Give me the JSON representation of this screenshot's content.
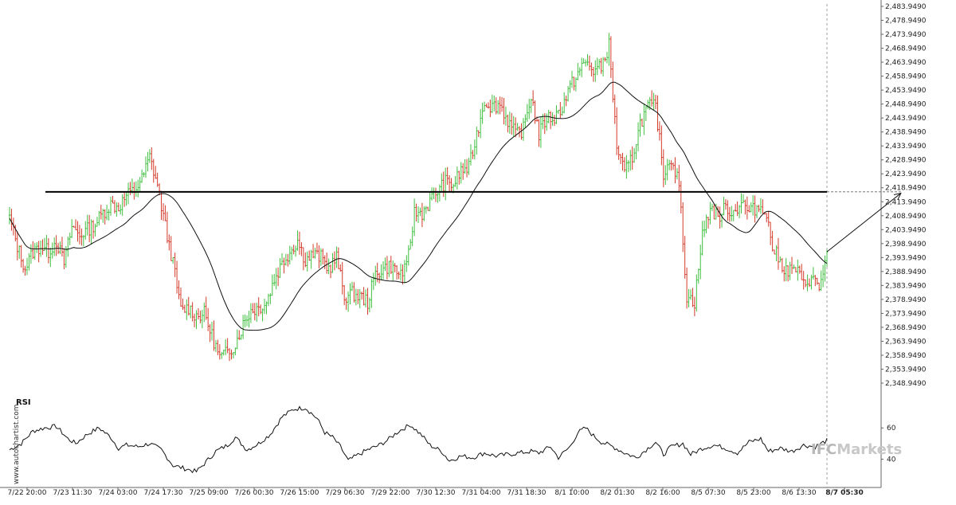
{
  "watermark": {
    "side_text": "www.autochartist.com",
    "logo_text": "IFCMarkets",
    "logo_prefix": "IFC",
    "logo_suffix": "Markets"
  },
  "colors": {
    "up": "#3fbf3f",
    "down": "#d43a2a",
    "ma": "#111111",
    "resistance": "#000000",
    "forecast": "#111111",
    "logo": "#c8c8c8"
  },
  "chart_data": [
    {
      "type": "candlestick",
      "title": "",
      "xlabel": "",
      "ylabel": "",
      "ylim": [
        2348.949,
        2483.949
      ],
      "y_ticks": [
        "2,483.9490",
        "2,478.9490",
        "2,473.9490",
        "2,468.9490",
        "2,463.9490",
        "2,458.9490",
        "2,453.9490",
        "2,448.9490",
        "2,443.9490",
        "2,438.9490",
        "2,433.9490",
        "2,428.9490",
        "2,423.9490",
        "2,418.9490",
        "2,413.9490",
        "2,408.9490",
        "2,403.9490",
        "2,398.9490",
        "2,393.9490",
        "2,388.9490",
        "2,383.9490",
        "2,378.9490",
        "2,373.9490",
        "2,368.9490",
        "2,363.9490",
        "2,358.9490",
        "2,353.9490",
        "2,348.9490"
      ],
      "x_ticks": [
        "7/22 20:00",
        "7/23 11:30",
        "7/24 03:00",
        "7/24 17:30",
        "7/25 09:00",
        "7/26 00:30",
        "7/26 15:00",
        "7/29 06:30",
        "7/29 22:00",
        "7/30 12:30",
        "7/31 04:00",
        "7/31 18:30",
        "8/1 10:00",
        "8/2 01:30",
        "8/2 16:00",
        "8/5 07:30",
        "8/5 23:00",
        "8/6 13:30",
        "8/7 05:30"
      ],
      "price_path": [
        [
          0,
          2408
        ],
        [
          4,
          2398
        ],
        [
          8,
          2390
        ],
        [
          12,
          2396
        ],
        [
          16,
          2398
        ],
        [
          20,
          2396
        ],
        [
          24,
          2400
        ],
        [
          28,
          2392
        ],
        [
          32,
          2405
        ],
        [
          36,
          2402
        ],
        [
          40,
          2404
        ],
        [
          44,
          2406
        ],
        [
          48,
          2410
        ],
        [
          52,
          2413
        ],
        [
          56,
          2412
        ],
        [
          60,
          2416
        ],
        [
          64,
          2418
        ],
        [
          68,
          2422
        ],
        [
          72,
          2430
        ],
        [
          76,
          2420
        ],
        [
          80,
          2405
        ],
        [
          84,
          2392
        ],
        [
          88,
          2375
        ],
        [
          92,
          2376
        ],
        [
          96,
          2373
        ],
        [
          100,
          2374
        ],
        [
          104,
          2366
        ],
        [
          108,
          2358
        ],
        [
          112,
          2360
        ],
        [
          116,
          2363
        ],
        [
          120,
          2370
        ],
        [
          124,
          2375
        ],
        [
          128,
          2376
        ],
        [
          132,
          2378
        ],
        [
          136,
          2386
        ],
        [
          140,
          2392
        ],
        [
          144,
          2396
        ],
        [
          148,
          2400
        ],
        [
          152,
          2393
        ],
        [
          156,
          2395
        ],
        [
          160,
          2394
        ],
        [
          164,
          2390
        ],
        [
          168,
          2394
        ],
        [
          172,
          2380
        ],
        [
          176,
          2381
        ],
        [
          180,
          2380
        ],
        [
          184,
          2378
        ],
        [
          188,
          2388
        ],
        [
          192,
          2390
        ],
        [
          196,
          2391
        ],
        [
          200,
          2388
        ],
        [
          204,
          2390
        ],
        [
          208,
          2410
        ],
        [
          212,
          2410
        ],
        [
          216,
          2414
        ],
        [
          220,
          2418
        ],
        [
          224,
          2421
        ],
        [
          228,
          2420
        ],
        [
          232,
          2425
        ],
        [
          236,
          2426
        ],
        [
          240,
          2438
        ],
        [
          244,
          2450
        ],
        [
          248,
          2448
        ],
        [
          252,
          2449
        ],
        [
          256,
          2443
        ],
        [
          260,
          2438
        ],
        [
          264,
          2440
        ],
        [
          268,
          2452
        ],
        [
          272,
          2438
        ],
        [
          276,
          2444
        ],
        [
          280,
          2444
        ],
        [
          284,
          2448
        ],
        [
          288,
          2455
        ],
        [
          292,
          2460
        ],
        [
          296,
          2464
        ],
        [
          300,
          2461
        ],
        [
          304,
          2462
        ],
        [
          308,
          2470
        ],
        [
          312,
          2434
        ],
        [
          316,
          2424
        ],
        [
          320,
          2430
        ],
        [
          324,
          2442
        ],
        [
          328,
          2448
        ],
        [
          332,
          2448
        ],
        [
          336,
          2424
        ],
        [
          340,
          2430
        ],
        [
          344,
          2420
        ],
        [
          348,
          2380
        ],
        [
          352,
          2378
        ],
        [
          356,
          2402
        ],
        [
          360,
          2412
        ],
        [
          364,
          2408
        ],
        [
          368,
          2412
        ],
        [
          372,
          2410
        ],
        [
          376,
          2414
        ],
        [
          380,
          2410
        ],
        [
          384,
          2412
        ],
        [
          388,
          2412
        ],
        [
          392,
          2398
        ],
        [
          396,
          2392
        ],
        [
          400,
          2389
        ],
        [
          404,
          2390
        ],
        [
          408,
          2384
        ],
        [
          412,
          2387
        ],
        [
          416,
          2383
        ],
        [
          420,
          2395
        ]
      ],
      "ma_period": 34,
      "resistance_level": 2417.5,
      "resistance_start_label": "7/23 11:30",
      "forecast": {
        "from_value": 2396,
        "to_value": 2417,
        "bars_ahead": 38
      },
      "grid": false
    },
    {
      "type": "line",
      "title": "RSI",
      "ylim": [
        28,
        80
      ],
      "y_ticks": [
        60,
        40
      ],
      "rsi_path": [
        [
          0,
          46
        ],
        [
          6,
          50
        ],
        [
          12,
          58
        ],
        [
          18,
          60
        ],
        [
          24,
          61
        ],
        [
          30,
          53
        ],
        [
          34,
          50
        ],
        [
          40,
          56
        ],
        [
          46,
          60
        ],
        [
          52,
          54
        ],
        [
          56,
          47
        ],
        [
          60,
          49
        ],
        [
          66,
          48
        ],
        [
          72,
          50
        ],
        [
          78,
          46
        ],
        [
          84,
          36
        ],
        [
          90,
          34
        ],
        [
          96,
          32
        ],
        [
          100,
          37
        ],
        [
          106,
          45
        ],
        [
          112,
          49
        ],
        [
          116,
          54
        ],
        [
          122,
          46
        ],
        [
          128,
          50
        ],
        [
          134,
          56
        ],
        [
          140,
          67
        ],
        [
          146,
          72
        ],
        [
          152,
          73
        ],
        [
          158,
          66
        ],
        [
          162,
          57
        ],
        [
          166,
          54
        ],
        [
          170,
          48
        ],
        [
          174,
          39
        ],
        [
          178,
          42
        ],
        [
          184,
          46
        ],
        [
          190,
          49
        ],
        [
          194,
          52
        ],
        [
          200,
          58
        ],
        [
          206,
          62
        ],
        [
          212,
          55
        ],
        [
          216,
          49
        ],
        [
          222,
          45
        ],
        [
          226,
          39
        ],
        [
          232,
          42
        ],
        [
          238,
          41
        ],
        [
          244,
          44
        ],
        [
          250,
          42
        ],
        [
          256,
          43
        ],
        [
          262,
          44
        ],
        [
          268,
          45
        ],
        [
          272,
          44
        ],
        [
          278,
          48
        ],
        [
          282,
          41
        ],
        [
          288,
          48
        ],
        [
          292,
          57
        ],
        [
          296,
          60
        ],
        [
          300,
          55
        ],
        [
          304,
          51
        ],
        [
          310,
          48
        ],
        [
          316,
          44
        ],
        [
          322,
          41
        ],
        [
          328,
          47
        ],
        [
          332,
          51
        ],
        [
          336,
          43
        ],
        [
          340,
          48
        ],
        [
          346,
          50
        ],
        [
          350,
          43
        ],
        [
          356,
          47
        ],
        [
          362,
          49
        ],
        [
          368,
          47
        ],
        [
          374,
          44
        ],
        [
          380,
          51
        ],
        [
          386,
          53
        ],
        [
          390,
          45
        ],
        [
          396,
          47
        ],
        [
          402,
          45
        ],
        [
          408,
          49
        ],
        [
          414,
          48
        ],
        [
          420,
          52
        ]
      ]
    }
  ]
}
